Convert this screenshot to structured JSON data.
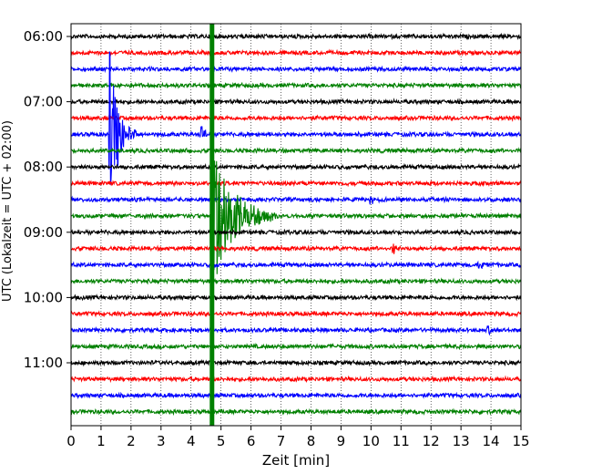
{
  "chart_data": {
    "type": "line",
    "title": "",
    "xlabel": "Zeit  [min]",
    "ylabel": "UTC (Lokalzeit = UTC + 02:00)",
    "xlim": [
      0,
      15
    ],
    "x_ticks": [
      "0",
      "1",
      "2",
      "3",
      "4",
      "5",
      "6",
      "7",
      "8",
      "9",
      "10",
      "11",
      "12",
      "13",
      "14",
      "15"
    ],
    "y_ticks": [
      "06:00",
      "07:00",
      "08:00",
      "09:00",
      "10:00",
      "11:00"
    ],
    "row_minutes": 15,
    "grid": "x-dotted",
    "row_start_times": [
      "06:00",
      "06:15",
      "06:30",
      "06:45",
      "07:00",
      "07:15",
      "07:30",
      "07:45",
      "08:00",
      "08:15",
      "08:30",
      "08:45",
      "09:00",
      "09:15",
      "09:30",
      "09:45",
      "10:00",
      "10:15",
      "10:30",
      "10:45",
      "11:00",
      "11:15",
      "11:30",
      "11:45"
    ],
    "colors": {
      "black": "#000000",
      "red": "#ff0000",
      "blue": "#0000ff",
      "green": "#008000"
    },
    "trace_color_cycle": [
      "black",
      "red",
      "blue",
      "green"
    ],
    "events": [
      {
        "start_row": "07:30",
        "color": "blue",
        "x_min": 1.3,
        "amplitude_rows": 5.2,
        "duration_min": 0.9
      },
      {
        "start_row": "07:30",
        "color": "blue",
        "x_min": 4.35,
        "amplitude_rows": 0.6,
        "duration_min": 0.4
      },
      {
        "start_row": "08:45",
        "color": "green",
        "x_min": 4.7,
        "amplitude_rows": 4.6,
        "duration_min": 2.2
      },
      {
        "start_row": "09:15",
        "color": "red",
        "x_min": 10.75,
        "amplitude_rows": 0.35,
        "duration_min": 0.4
      },
      {
        "start_row": "09:30",
        "color": "blue",
        "x_min": 13.6,
        "amplitude_rows": 0.35,
        "duration_min": 0.4
      },
      {
        "start_row": "10:30",
        "color": "blue",
        "x_min": 13.9,
        "amplitude_rows": 0.3,
        "duration_min": 0.4
      },
      {
        "start_row": "08:30",
        "color": "blue",
        "x_min": 10.0,
        "amplitude_rows": 0.3,
        "duration_min": 0.3
      }
    ],
    "vertical_marker": {
      "x_min": 4.7,
      "color": "green"
    }
  }
}
